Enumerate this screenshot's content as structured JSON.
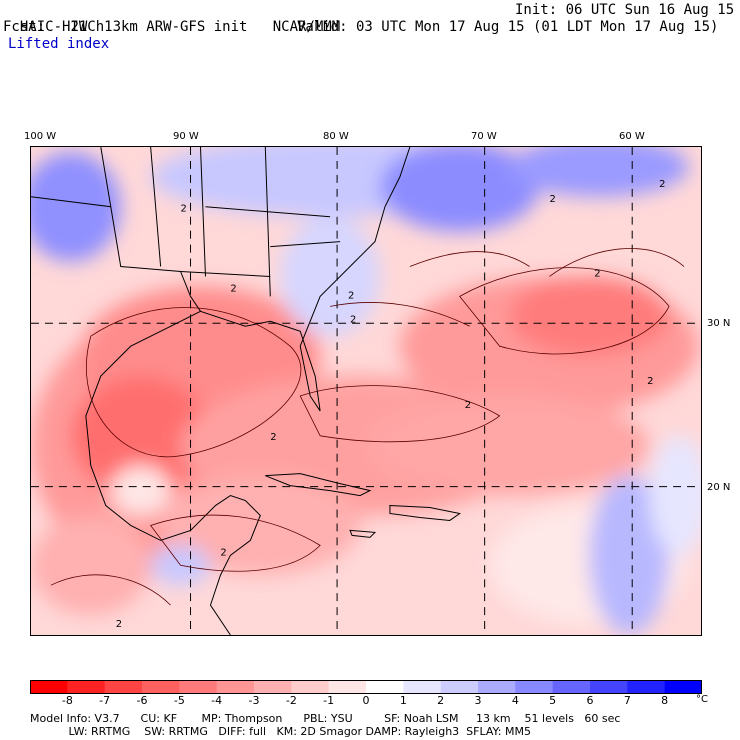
{
  "header": {
    "model": "HAIC-HIWC 13km ARW-GFS init",
    "org": "NCAR/MMM",
    "init": "Init: 06 UTC Sun 16 Aug 15",
    "fcst_label": "Fcst:",
    "fcst_value": "21 h",
    "valid": "Valid: 03 UTC Mon 17 Aug 15 (01 LDT Mon 17 Aug 15)",
    "field": "Lifted index"
  },
  "axes": {
    "lon_labels": [
      "100 W",
      "90 W",
      "80 W",
      "70 W",
      "60 W"
    ],
    "lat_labels": [
      "30 N",
      "20 N"
    ]
  },
  "colorbar": {
    "ticks": [
      "-8",
      "-7",
      "-6",
      "-5",
      "-4",
      "-3",
      "-2",
      "-1",
      "0",
      "1",
      "2",
      "3",
      "4",
      "5",
      "6",
      "7",
      "8"
    ],
    "unit": "°C",
    "colors": [
      "#ff0000",
      "#ff2222",
      "#ff4444",
      "#ff6060",
      "#ff7a7a",
      "#ff9696",
      "#ffb0b0",
      "#ffcccc",
      "#ffe6e6",
      "#ffffff",
      "#e6e6ff",
      "#ccccff",
      "#aaaaff",
      "#8888ff",
      "#6666ff",
      "#4444ff",
      "#2222ff",
      "#0000ff"
    ]
  },
  "map_legend": {
    "contour_label": "2",
    "colors": {
      "warm_strong": "#ff5a5a",
      "warm_mid": "#ff8c8c",
      "warm_light": "#ffb8b8",
      "neutral": "#ffe8e8",
      "cool": "#c8c8ff",
      "cold": "#5050ff"
    }
  },
  "model_info": {
    "line1": "Model Info: V3.7      CU: KF       MP: Thompson      PBL: YSU         SF: Noah LSM     13 km    51 levels   60 sec",
    "line2": "           LW: RRTMG    SW: RRTMG   DIFF: full   KM: 2D Smagor DAMP: Rayleigh3  SFLAY: MM5"
  }
}
